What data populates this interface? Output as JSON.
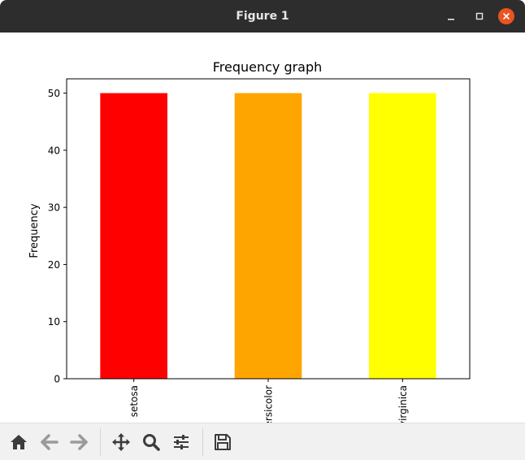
{
  "window": {
    "title": "Figure 1"
  },
  "colors": {
    "titlebar": "#2d2d2d",
    "close_button": "#e95420",
    "toolbar_bg": "#f1f1f1",
    "icon": "#3c3c3c",
    "icon_disabled": "#9a9a9a"
  },
  "toolbar": {
    "buttons": [
      {
        "icon": "home-icon",
        "enabled": true
      },
      {
        "icon": "arrow-left-icon",
        "enabled": false
      },
      {
        "icon": "arrow-right-icon",
        "enabled": false
      },
      {
        "icon": "move-icon",
        "enabled": true
      },
      {
        "icon": "zoom-icon",
        "enabled": true
      },
      {
        "icon": "sliders-icon",
        "enabled": true
      },
      {
        "icon": "save-icon",
        "enabled": true
      }
    ]
  },
  "chart_data": {
    "type": "bar",
    "title": "Frequency graph",
    "xlabel": "",
    "ylabel": "Frequency",
    "categories": [
      "setosa",
      "versicolor",
      "virginica"
    ],
    "values": [
      50,
      50,
      50
    ],
    "bar_colors": [
      "#ff0000",
      "#ffa500",
      "#ffff00"
    ],
    "ylim": [
      0,
      52.5
    ],
    "yticks": [
      0,
      10,
      20,
      30,
      40,
      50
    ],
    "grid": false,
    "xtick_rotation": 90
  }
}
